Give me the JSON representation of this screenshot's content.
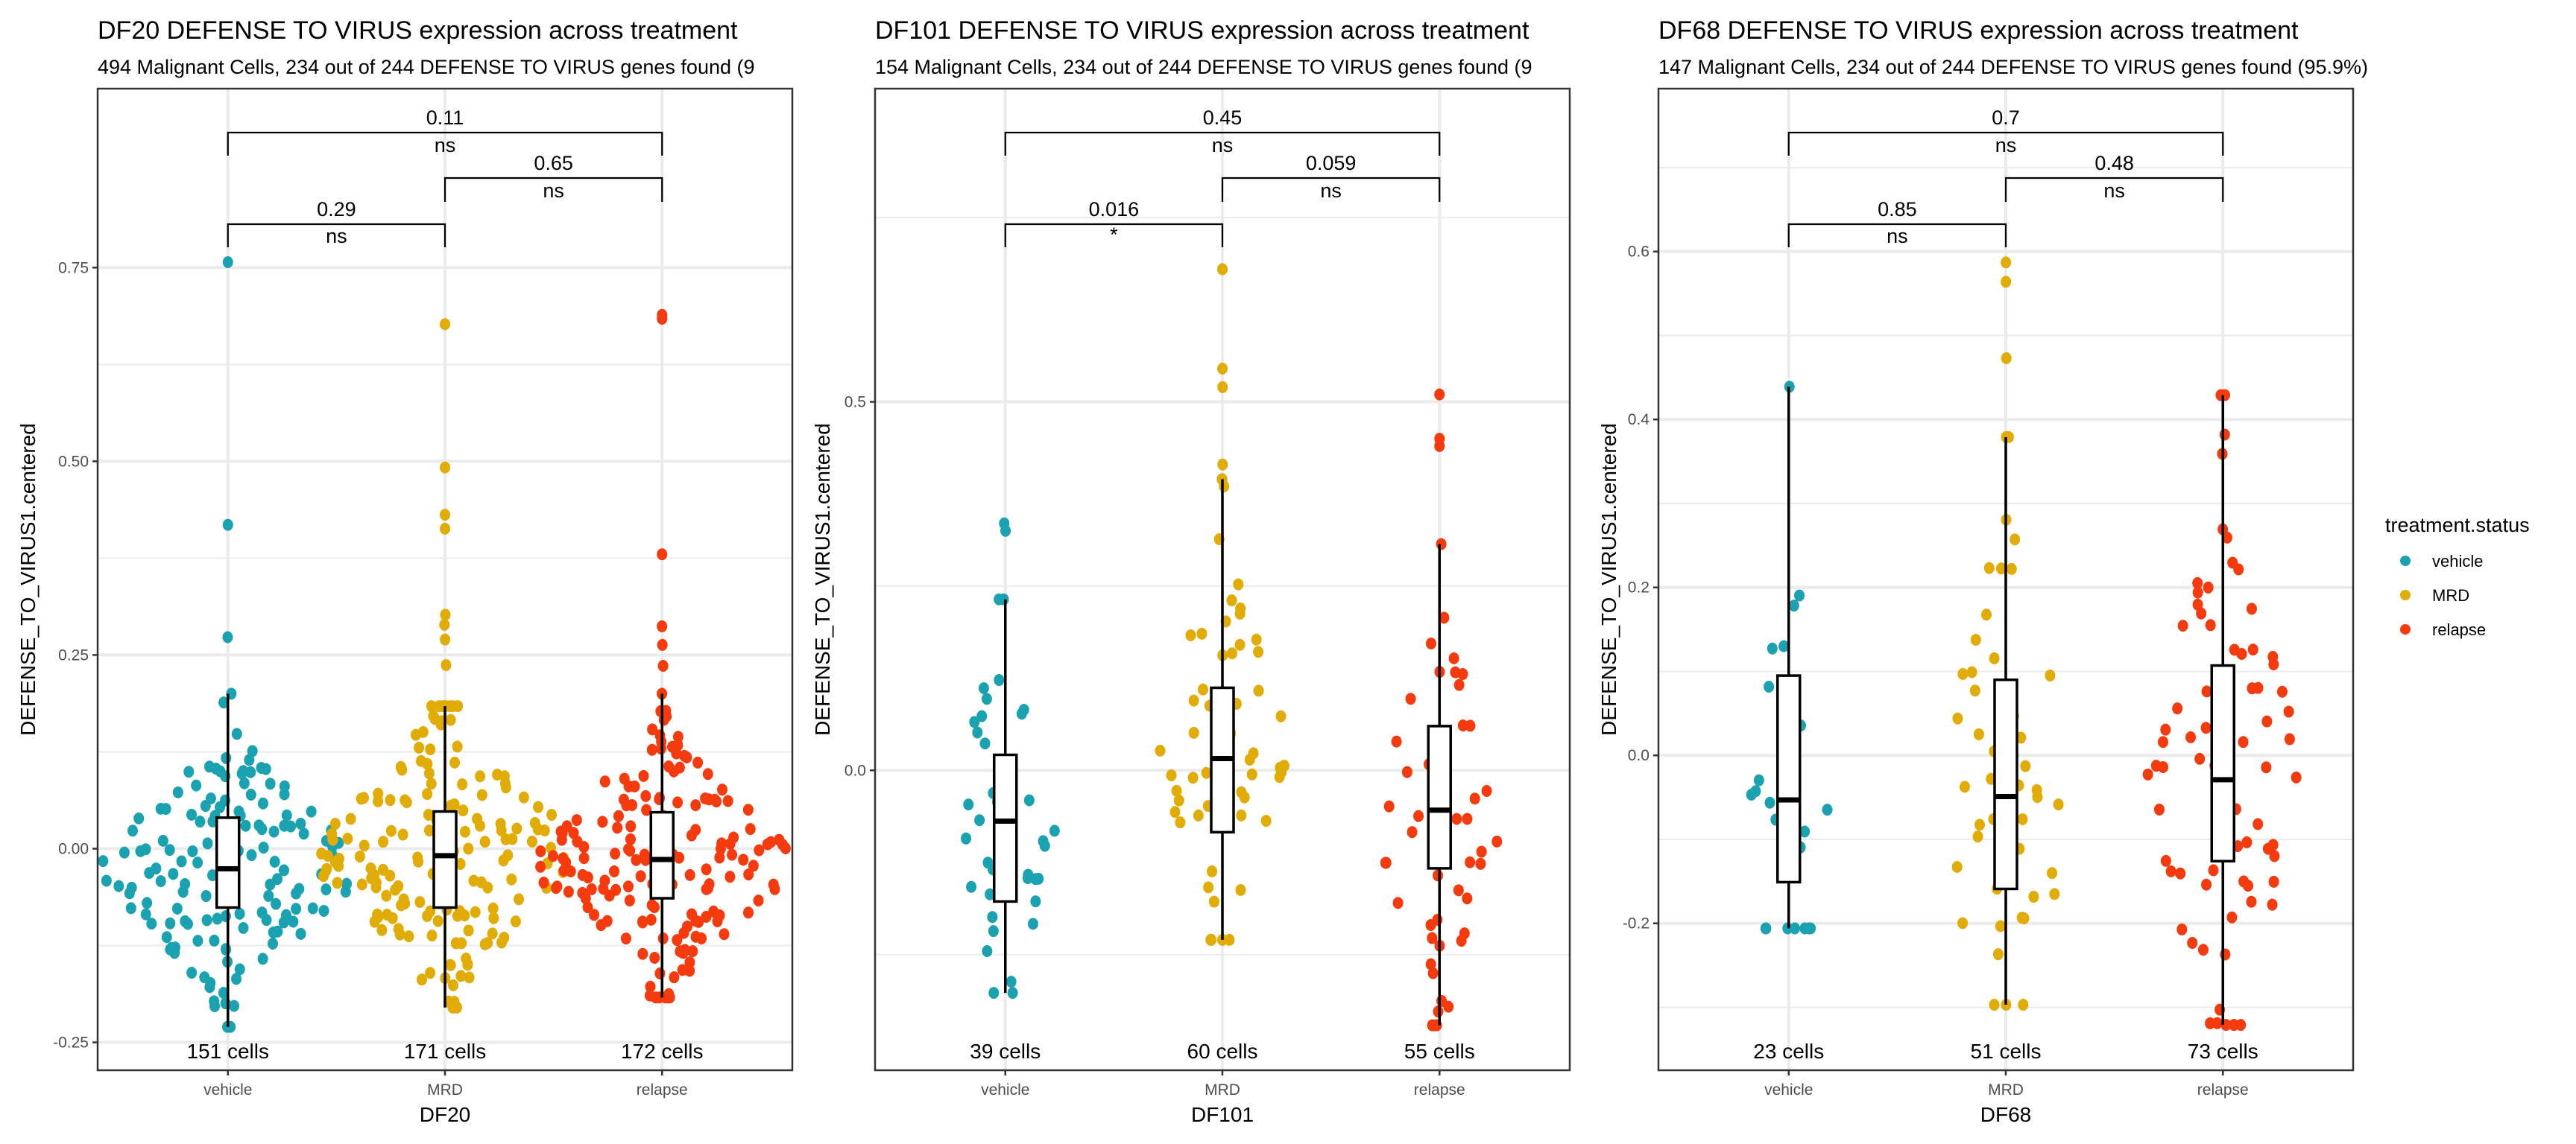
{
  "chart_data": [
    {
      "type": "box",
      "panel_id": "DF20",
      "title": "DF20 DEFENSE TO VIRUS expression across treatment",
      "subtitle": "494 Malignant Cells, 234 out of 244 DEFENSE TO VIRUS genes found (9",
      "xlabel": "DF20",
      "ylabel": "DEFENSE_TO_VIRUS1.centered",
      "categories": [
        "vehicle",
        "MRD",
        "relapse"
      ],
      "ylim": [
        -0.286,
        0.981
      ],
      "yticks": [
        {
          "value": 0.75,
          "label": "0.75"
        },
        {
          "value": 0.5,
          "label": "0.50"
        },
        {
          "value": 0.25,
          "label": "0.25"
        },
        {
          "value": 0.0,
          "label": "0.00"
        },
        {
          "value": -0.25,
          "label": "-0.25"
        }
      ],
      "minor_grid": [
        0.625,
        0.375,
        0.125,
        -0.125
      ],
      "groups": [
        {
          "name": "vehicle",
          "n": 151,
          "cells_label": "151 cells",
          "q1": -0.076,
          "median": -0.026,
          "q3": 0.04,
          "whisker_low": -0.23,
          "whisker_high": 0.2,
          "outliers": [
            0.757,
            0.418,
            0.273
          ]
        },
        {
          "name": "MRD",
          "n": 171,
          "cells_label": "171 cells",
          "q1": -0.076,
          "median": -0.009,
          "q3": 0.048,
          "whisker_low": -0.205,
          "whisker_high": 0.184,
          "outliers": [
            0.677,
            0.492,
            0.431,
            0.413,
            0.302,
            0.289,
            0.27,
            0.237
          ]
        },
        {
          "name": "relapse",
          "n": 172,
          "cells_label": "172 cells",
          "q1": -0.064,
          "median": -0.014,
          "q3": 0.047,
          "whisker_low": -0.192,
          "whisker_high": 0.2,
          "outliers": [
            0.689,
            0.684,
            0.38,
            0.287,
            0.263,
            0.236
          ]
        }
      ],
      "comparisons": [
        {
          "from": "vehicle",
          "to": "MRD",
          "p": "0.29",
          "signif": "ns",
          "level": 1
        },
        {
          "from": "MRD",
          "to": "relapse",
          "p": "0.65",
          "signif": "ns",
          "level": 2
        },
        {
          "from": "vehicle",
          "to": "relapse",
          "p": "0.11",
          "signif": "ns",
          "level": 3
        }
      ]
    },
    {
      "type": "box",
      "panel_id": "DF101",
      "title": "DF101 DEFENSE TO VIRUS expression across treatment",
      "subtitle": "154 Malignant Cells, 234 out of 244 DEFENSE TO VIRUS genes found (9",
      "xlabel": "DF101",
      "ylabel": "DEFENSE_TO_VIRUS1.centered",
      "categories": [
        "vehicle",
        "MRD",
        "relapse"
      ],
      "ylim": [
        -0.407,
        0.925
      ],
      "yticks": [
        {
          "value": 0.5,
          "label": "0.5"
        },
        {
          "value": 0.0,
          "label": "0.0"
        }
      ],
      "minor_grid": [
        0.75,
        0.25,
        -0.25
      ],
      "groups": [
        {
          "name": "vehicle",
          "n": 39,
          "cells_label": "39 cells",
          "q1": -0.178,
          "median": -0.069,
          "q3": 0.021,
          "whisker_low": -0.302,
          "whisker_high": 0.232,
          "outliers": [
            0.335,
            0.325
          ]
        },
        {
          "name": "MRD",
          "n": 60,
          "cells_label": "60 cells",
          "q1": -0.084,
          "median": 0.016,
          "q3": 0.112,
          "whisker_low": -0.23,
          "whisker_high": 0.395,
          "outliers": [
            0.68,
            0.545,
            0.52,
            0.415
          ]
        },
        {
          "name": "relapse",
          "n": 55,
          "cells_label": "55 cells",
          "q1": -0.133,
          "median": -0.054,
          "q3": 0.06,
          "whisker_low": -0.346,
          "whisker_high": 0.307,
          "outliers": [
            0.51,
            0.45,
            0.44
          ]
        }
      ],
      "comparisons": [
        {
          "from": "vehicle",
          "to": "MRD",
          "p": "0.016",
          "signif": "*",
          "level": 1
        },
        {
          "from": "MRD",
          "to": "relapse",
          "p": "0.059",
          "signif": "ns",
          "level": 2
        },
        {
          "from": "vehicle",
          "to": "relapse",
          "p": "0.45",
          "signif": "ns",
          "level": 3
        }
      ]
    },
    {
      "type": "box",
      "panel_id": "DF68",
      "title": "DF68 DEFENSE TO VIRUS expression across treatment",
      "subtitle": "147 Malignant Cells, 234 out of 244 DEFENSE TO VIRUS genes found (95.9%)",
      "xlabel": "DF68",
      "ylabel": "DEFENSE_TO_VIRUS1.centered",
      "categories": [
        "vehicle",
        "MRD",
        "relapse"
      ],
      "ylim": [
        -0.375,
        0.794
      ],
      "yticks": [
        {
          "value": 0.6,
          "label": "0.6"
        },
        {
          "value": 0.4,
          "label": "0.4"
        },
        {
          "value": 0.2,
          "label": "0.2"
        },
        {
          "value": 0.0,
          "label": "0.0"
        },
        {
          "value": -0.2,
          "label": "-0.2"
        }
      ],
      "minor_grid": [
        0.7,
        0.5,
        0.3,
        0.1,
        -0.1,
        -0.3
      ],
      "groups": [
        {
          "name": "vehicle",
          "n": 23,
          "cells_label": "23 cells",
          "q1": -0.151,
          "median": -0.053,
          "q3": 0.095,
          "whisker_low": -0.206,
          "whisker_high": 0.439,
          "outliers": []
        },
        {
          "name": "MRD",
          "n": 51,
          "cells_label": "51 cells",
          "q1": -0.159,
          "median": -0.049,
          "q3": 0.09,
          "whisker_low": -0.297,
          "whisker_high": 0.379,
          "outliers": [
            0.587,
            0.564,
            0.473
          ]
        },
        {
          "name": "relapse",
          "n": 73,
          "cells_label": "73 cells",
          "q1": -0.126,
          "median": -0.029,
          "q3": 0.107,
          "whisker_low": -0.321,
          "whisker_high": 0.429,
          "outliers": []
        }
      ],
      "comparisons": [
        {
          "from": "vehicle",
          "to": "MRD",
          "p": "0.85",
          "signif": "ns",
          "level": 1
        },
        {
          "from": "MRD",
          "to": "relapse",
          "p": "0.48",
          "signif": "ns",
          "level": 2
        },
        {
          "from": "vehicle",
          "to": "relapse",
          "p": "0.7",
          "signif": "ns",
          "level": 3
        }
      ]
    }
  ],
  "legend": {
    "title": "treatment.status",
    "position": "right",
    "items": [
      {
        "label": "vehicle",
        "color": "#1AA2B0"
      },
      {
        "label": "MRD",
        "color": "#E2AC06"
      },
      {
        "label": "relapse",
        "color": "#F53A0E"
      }
    ]
  },
  "colors": {
    "vehicle": "#1AA2B0",
    "MRD": "#E2AC06",
    "relapse": "#F53A0E",
    "grid": "#EBEBEB",
    "panel_border": "#333333"
  }
}
